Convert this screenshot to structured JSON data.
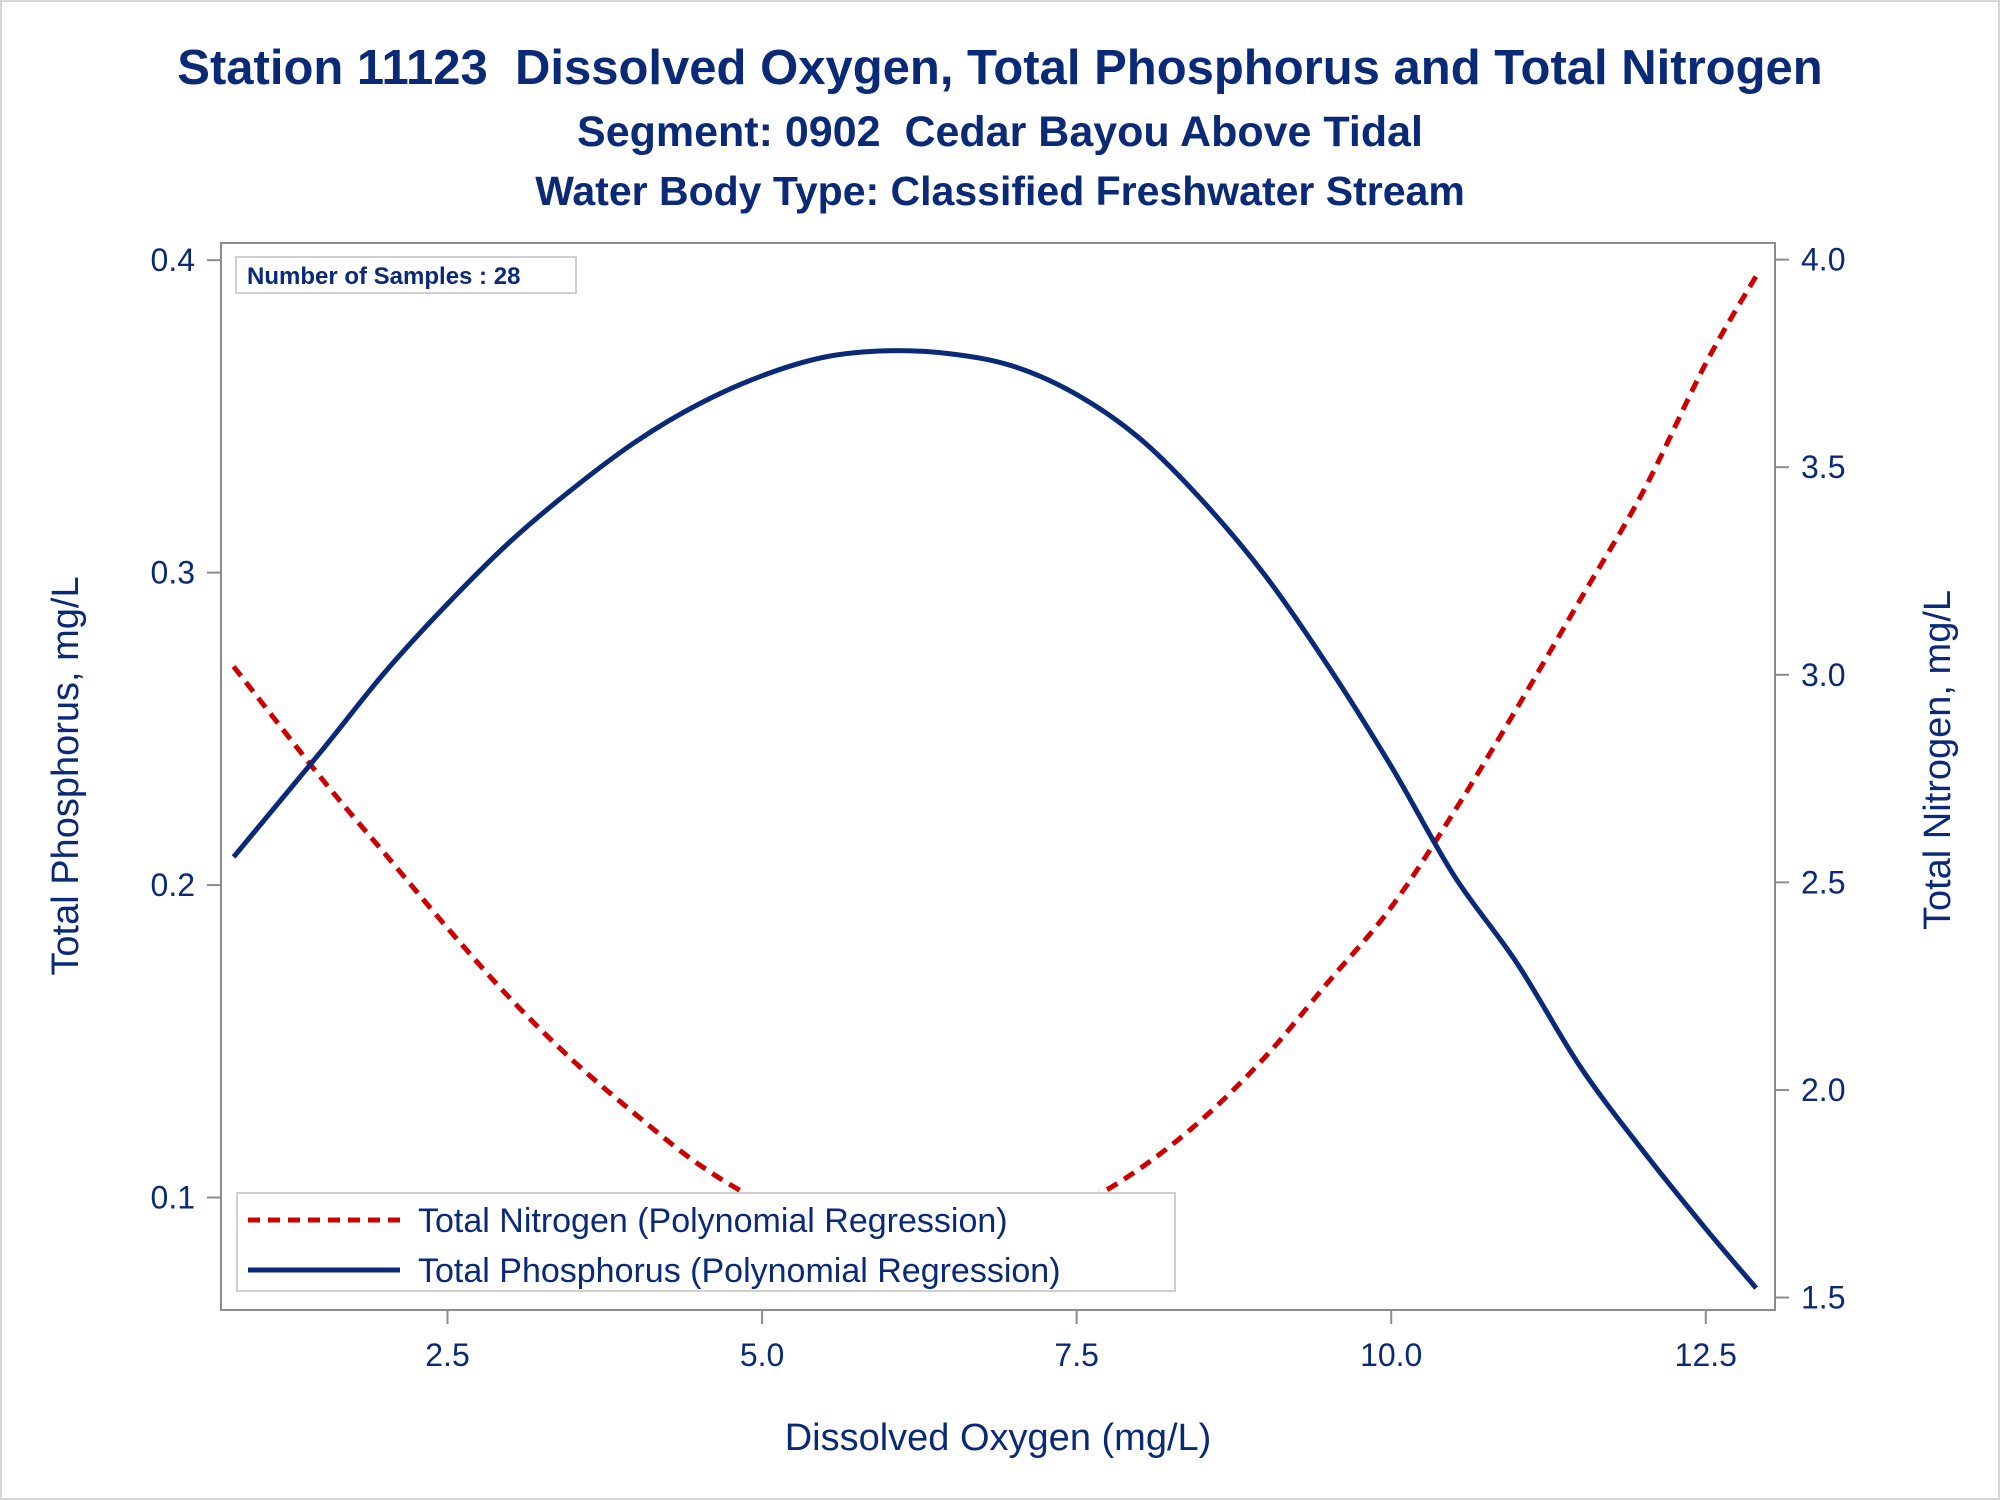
{
  "colors": {
    "title": "#0a2a78",
    "nitrogen": "#cc0000",
    "phosphorus": "#0a2a78",
    "axis": "#8c8c8c"
  },
  "chart_data": {
    "type": "line",
    "title": "Station 11123  Dissolved Oxygen, Total Phosphorus and Total Nitrogen",
    "subtitle": "Segment: 0902  Cedar Bayou Above Tidal",
    "subtitle2": "Water Body Type: Classified Freshwater Stream",
    "xlabel": "Dissolved Oxygen (mg/L)",
    "ylabel": "Total Phosphorus, mg/L",
    "y2label": "Total Nitrogen, mg/L",
    "xlim": [
      0.7,
      13.05
    ],
    "ylim": [
      0.064,
      0.4055
    ],
    "y2lim": [
      1.47,
      4.04
    ],
    "xticks": [
      "2.5",
      "5.0",
      "7.5",
      "10.0",
      "12.5"
    ],
    "xtick_values": [
      2.5,
      5.0,
      7.5,
      10.0,
      12.5
    ],
    "yticks": [
      "0.1",
      "0.2",
      "0.3",
      "0.4"
    ],
    "ytick_values": [
      0.1,
      0.2,
      0.3,
      0.4
    ],
    "y2ticks": [
      "1.5",
      "2.0",
      "2.5",
      "3.0",
      "3.5",
      "4.0"
    ],
    "y2tick_values": [
      1.5,
      2.0,
      2.5,
      3.0,
      3.5,
      4.0
    ],
    "annotation": "Number of Samples : 28",
    "legend_position": "bottom-left inside",
    "series": [
      {
        "name": "Total Nitrogen (Polynomial Regression)",
        "axis": "y2",
        "style": "dashed",
        "x": [
          0.8,
          1.5,
          2.0,
          2.5,
          3.0,
          3.5,
          4.0,
          4.5,
          5.0,
          5.5,
          6.0,
          6.5,
          7.0,
          7.5,
          8.0,
          8.5,
          9.0,
          9.5,
          10.0,
          10.5,
          11.0,
          11.5,
          12.0,
          12.5,
          12.9
        ],
        "y": [
          3.02,
          2.75,
          2.57,
          2.39,
          2.22,
          2.07,
          1.94,
          1.82,
          1.73,
          1.67,
          1.63,
          1.63,
          1.66,
          1.72,
          1.81,
          1.93,
          2.08,
          2.26,
          2.44,
          2.67,
          2.92,
          3.18,
          3.44,
          3.75,
          3.96
        ]
      },
      {
        "name": "Total Phosphorus (Polynomial Regression)",
        "axis": "y",
        "style": "solid",
        "x": [
          0.8,
          1.5,
          2.0,
          2.5,
          3.0,
          3.5,
          4.0,
          4.5,
          5.0,
          5.5,
          6.0,
          6.5,
          7.0,
          7.5,
          8.0,
          8.5,
          9.0,
          9.5,
          10.0,
          10.5,
          11.0,
          11.5,
          12.0,
          12.5,
          12.9
        ],
        "y": [
          0.209,
          0.243,
          0.268,
          0.29,
          0.31,
          0.327,
          0.342,
          0.354,
          0.363,
          0.369,
          0.371,
          0.37,
          0.366,
          0.357,
          0.343,
          0.323,
          0.299,
          0.27,
          0.238,
          0.203,
          0.175,
          0.142,
          0.115,
          0.09,
          0.071
        ]
      }
    ]
  }
}
